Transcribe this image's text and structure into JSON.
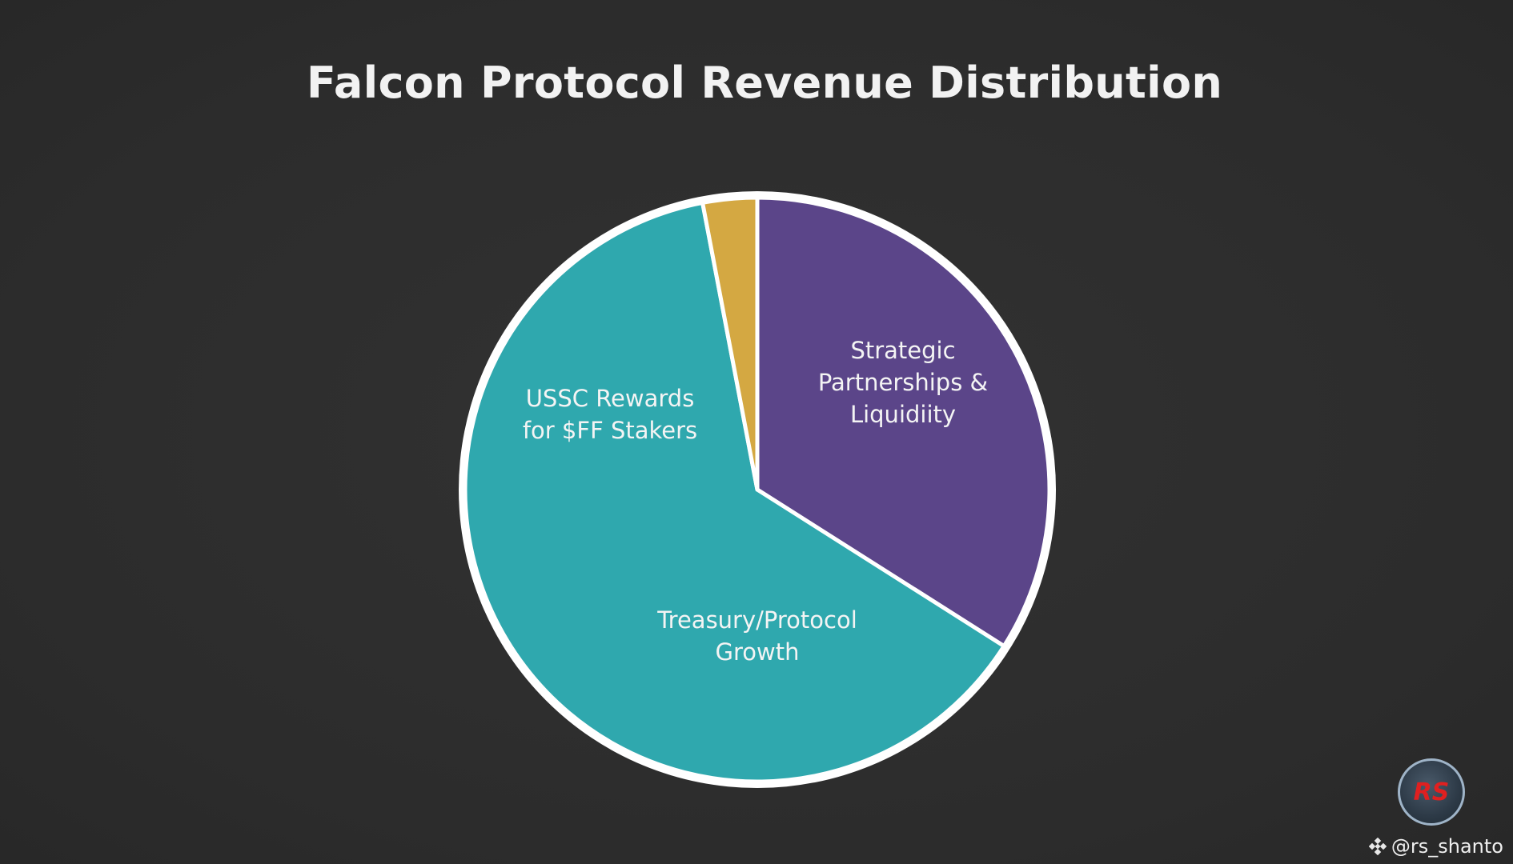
{
  "chart_data": {
    "type": "pie",
    "title": "Falcon Protocol Revenue Distribution",
    "start_angle_deg": -90,
    "direction": "clockwise",
    "slices": [
      {
        "label": "Strategic\nPartnerships &\nLiquidiity",
        "value": 34,
        "color": "#5b4589"
      },
      {
        "label": "Treasury/Protocol\nGrowth",
        "value": 63,
        "color": "#2fa8ae"
      },
      {
        "label": "",
        "value": 3,
        "color": "#d4a842"
      }
    ],
    "extra_labels": [
      {
        "text": "USSC Rewards\nfor $FF Stakers"
      }
    ],
    "outline_color": "#ffffff",
    "legend": "none",
    "grid": false
  },
  "watermark": {
    "logo_text": "RS",
    "handle": "@rs_shanto",
    "diamond_icon": "binance-diamond-icon"
  }
}
